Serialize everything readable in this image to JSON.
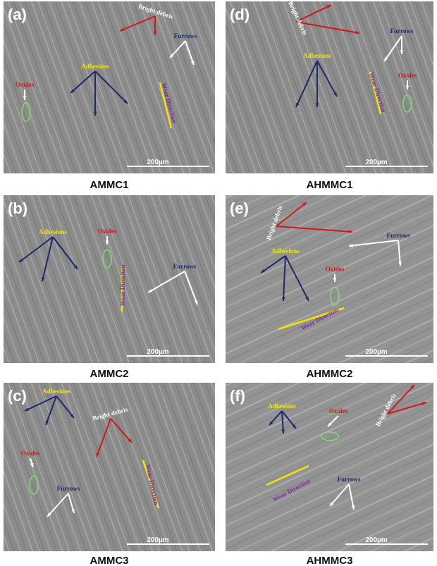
{
  "panels": [
    {
      "label": "(a)",
      "caption": "AMMC1",
      "scale_bar": "200µm",
      "annotations": [
        {
          "text": "Bright debris"
        },
        {
          "text": "Furrows"
        },
        {
          "text": "Adhesions"
        },
        {
          "text": "Oxides"
        },
        {
          "text": "Wear Direction"
        }
      ]
    },
    {
      "label": "(d)",
      "caption": "AHMMC1",
      "scale_bar": "200µm",
      "annotations": [
        {
          "text": "Bright debris"
        },
        {
          "text": "Furrows"
        },
        {
          "text": "Adhesions"
        },
        {
          "text": "Oxides"
        },
        {
          "text": "Wear Direction"
        }
      ]
    },
    {
      "label": "(b)",
      "caption": "AMMC2",
      "scale_bar": "200µm",
      "annotations": [
        {
          "text": "Adhesions"
        },
        {
          "text": "Oxides"
        },
        {
          "text": "Wear Direction"
        },
        {
          "text": "Furrows"
        }
      ]
    },
    {
      "label": "(e)",
      "caption": "AHMMC2",
      "scale_bar": "200µm",
      "annotations": [
        {
          "text": "Bright debris"
        },
        {
          "text": "Furrows"
        },
        {
          "text": "Adhesions"
        },
        {
          "text": "Oxides"
        },
        {
          "text": "Wear Direction"
        }
      ]
    },
    {
      "label": "(c)",
      "caption": "AMMC3",
      "scale_bar": "200µm",
      "annotations": [
        {
          "text": "Adhesions"
        },
        {
          "text": "Bright debris"
        },
        {
          "text": "Oxides"
        },
        {
          "text": "Furrows"
        },
        {
          "text": "Wear Direction"
        }
      ]
    },
    {
      "label": "(f)",
      "caption": "AHMMC3",
      "scale_bar": "200µm",
      "annotations": [
        {
          "text": "Adhesions"
        },
        {
          "text": "Oxides"
        },
        {
          "text": "Bright debris"
        },
        {
          "text": "Furrows"
        },
        {
          "text": "Wear Direction"
        }
      ]
    }
  ]
}
